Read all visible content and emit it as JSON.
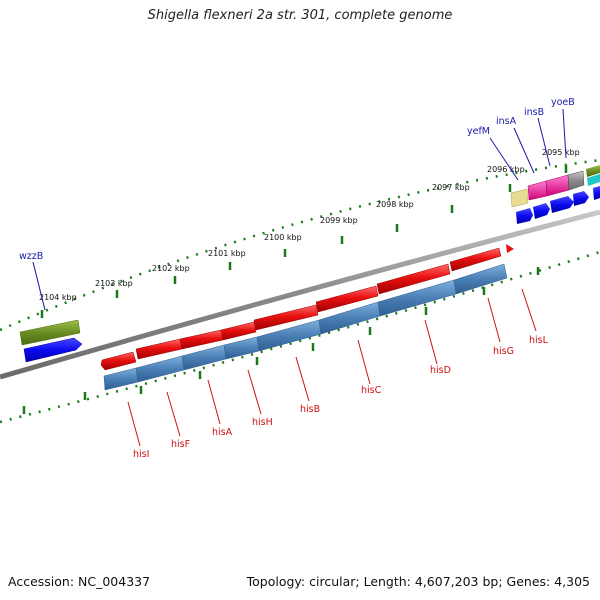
{
  "title": "Shigella flexneri 2a str. 301, complete genome",
  "footer": {
    "accession": "Accession: NC_004337",
    "summary": "Topology: circular; Length: 4,607,203 bp; Genes: 4,305"
  },
  "scale_labels": [
    "2104 kbp",
    "2103 kbp",
    "2102 kbp",
    "2101 kbp",
    "2100 kbp",
    "2099 kbp",
    "2098 kbp",
    "2097 kbp",
    "2096 kbp",
    "2095 kbp"
  ],
  "upper_genes": [
    "wzzB",
    "yefM",
    "insA",
    "insB",
    "yoeB"
  ],
  "lower_genes": [
    "hisI",
    "hisF",
    "hisA",
    "hisH",
    "hisB",
    "hisC",
    "hisD",
    "hisG",
    "hisL"
  ],
  "colors": {
    "backbone": "#808080",
    "his_red": "#e81010",
    "his_blue": "#4a7fb5",
    "olive": "#6b8e23",
    "blue_gene": "#0a0af0",
    "magenta": "#ff1aa8",
    "tan": "#e8dc90",
    "dark_gray": "#5a5a5a",
    "teal": "#1ec8c8",
    "scale_green": "#1a7a1a"
  }
}
